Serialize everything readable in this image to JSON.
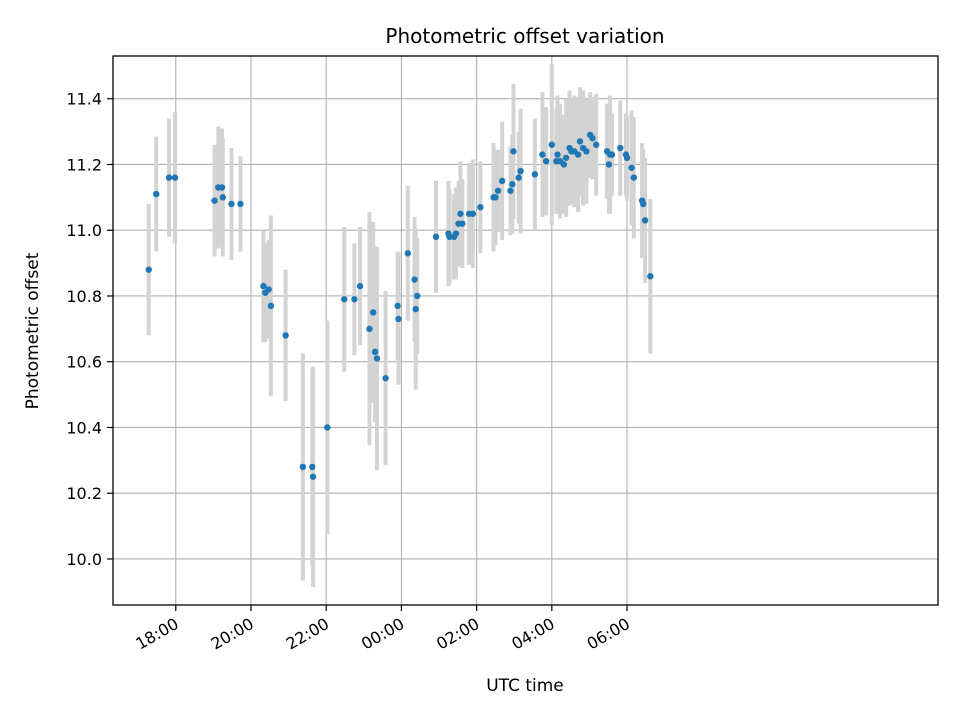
{
  "chart_data": {
    "type": "scatter",
    "title": "Photometric offset variation",
    "xlabel": "UTC time",
    "ylabel": "Photometric offset",
    "x_unit": "UTC hours after 00:00 of first day (values >24 continue into next day)",
    "xlim": [
      16.33,
      38.27
    ],
    "ylim": [
      9.86,
      11.53
    ],
    "x_ticks": [
      {
        "value": 18,
        "label": "18:00"
      },
      {
        "value": 20,
        "label": "20:00"
      },
      {
        "value": 22,
        "label": "22:00"
      },
      {
        "value": 24,
        "label": "00:00"
      },
      {
        "value": 26,
        "label": "02:00"
      },
      {
        "value": 28,
        "label": "04:00"
      },
      {
        "value": 30,
        "label": "06:00"
      }
    ],
    "y_ticks": [
      {
        "value": 10.0,
        "label": "10.0"
      },
      {
        "value": 10.2,
        "label": "10.2"
      },
      {
        "value": 10.4,
        "label": "10.4"
      },
      {
        "value": 10.6,
        "label": "10.6"
      },
      {
        "value": 10.8,
        "label": "10.8"
      },
      {
        "value": 11.0,
        "label": "11.0"
      },
      {
        "value": 11.2,
        "label": "11.2"
      },
      {
        "value": 11.4,
        "label": "11.4"
      }
    ],
    "grid": true,
    "colors": {
      "points": "#1f77b4",
      "errorbars": "#d3d3d3",
      "grid": "#b0b0b0"
    },
    "series": [
      {
        "points": [
          [
            17.28,
            10.88,
            0.2
          ],
          [
            17.48,
            11.11,
            0.175
          ],
          [
            17.82,
            11.16,
            0.18
          ],
          [
            17.98,
            11.16,
            0.2
          ],
          [
            19.03,
            11.09,
            0.17
          ],
          [
            19.13,
            11.13,
            0.185
          ],
          [
            19.23,
            11.13,
            0.18
          ],
          [
            19.25,
            11.1,
            0.18
          ],
          [
            19.48,
            11.08,
            0.17
          ],
          [
            19.72,
            11.08,
            0.145
          ],
          [
            20.33,
            10.83,
            0.17
          ],
          [
            20.38,
            10.81,
            0.15
          ],
          [
            20.47,
            10.82,
            0.15
          ],
          [
            20.53,
            10.77,
            0.275
          ],
          [
            20.92,
            10.68,
            0.2
          ],
          [
            21.38,
            10.28,
            0.345
          ],
          [
            21.63,
            10.28,
            0.3
          ],
          [
            21.65,
            10.25,
            0.335
          ],
          [
            22.03,
            10.4,
            0.325
          ],
          [
            22.48,
            10.79,
            0.22
          ],
          [
            22.75,
            10.79,
            0.17
          ],
          [
            22.9,
            10.83,
            0.18
          ],
          [
            23.15,
            10.7,
            0.355
          ],
          [
            23.25,
            10.75,
            0.275
          ],
          [
            23.3,
            10.63,
            0.215
          ],
          [
            23.35,
            10.61,
            0.34
          ],
          [
            23.58,
            10.55,
            0.265
          ],
          [
            23.9,
            10.77,
            0.165
          ],
          [
            23.92,
            10.73,
            0.2
          ],
          [
            24.17,
            10.93,
            0.205
          ],
          [
            24.35,
            10.85,
            0.19
          ],
          [
            24.38,
            10.76,
            0.245
          ],
          [
            24.42,
            10.8,
            0.175
          ],
          [
            24.92,
            10.98,
            0.17
          ],
          [
            25.25,
            10.99,
            0.16
          ],
          [
            25.28,
            10.98,
            0.145
          ],
          [
            25.4,
            10.98,
            0.13
          ],
          [
            25.45,
            10.99,
            0.14
          ],
          [
            25.52,
            11.02,
            0.13
          ],
          [
            25.57,
            11.05,
            0.16
          ],
          [
            25.62,
            11.02,
            0.135
          ],
          [
            25.8,
            11.05,
            0.155
          ],
          [
            25.9,
            11.05,
            0.165
          ],
          [
            26.1,
            11.07,
            0.14
          ],
          [
            26.45,
            11.1,
            0.165
          ],
          [
            26.5,
            11.1,
            0.145
          ],
          [
            26.57,
            11.12,
            0.125
          ],
          [
            26.68,
            11.15,
            0.18
          ],
          [
            26.9,
            11.12,
            0.135
          ],
          [
            26.95,
            11.14,
            0.15
          ],
          [
            26.98,
            11.24,
            0.205
          ],
          [
            27.12,
            11.16,
            0.14
          ],
          [
            27.17,
            11.18,
            0.19
          ],
          [
            27.55,
            11.17,
            0.17
          ],
          [
            27.75,
            11.23,
            0.19
          ],
          [
            27.85,
            11.21,
            0.165
          ],
          [
            28.0,
            11.26,
            0.245
          ],
          [
            28.12,
            11.21,
            0.16
          ],
          [
            28.15,
            11.23,
            0.18
          ],
          [
            28.22,
            11.21,
            0.175
          ],
          [
            28.32,
            11.2,
            0.15
          ],
          [
            28.38,
            11.22,
            0.18
          ],
          [
            28.47,
            11.25,
            0.175
          ],
          [
            28.52,
            11.24,
            0.16
          ],
          [
            28.6,
            11.24,
            0.17
          ],
          [
            28.7,
            11.23,
            0.175
          ],
          [
            28.75,
            11.27,
            0.165
          ],
          [
            28.83,
            11.25,
            0.175
          ],
          [
            28.92,
            11.24,
            0.16
          ],
          [
            29.02,
            11.29,
            0.13
          ],
          [
            29.08,
            11.28,
            0.125
          ],
          [
            29.18,
            11.26,
            0.155
          ],
          [
            29.47,
            11.24,
            0.145
          ],
          [
            29.52,
            11.2,
            0.15
          ],
          [
            29.55,
            11.23,
            0.18
          ],
          [
            29.6,
            11.23,
            0.125
          ],
          [
            29.82,
            11.25,
            0.145
          ],
          [
            29.97,
            11.23,
            0.125
          ],
          [
            30.0,
            11.22,
            0.13
          ],
          [
            30.12,
            11.19,
            0.175
          ],
          [
            30.18,
            11.16,
            0.185
          ],
          [
            30.4,
            11.09,
            0.175
          ],
          [
            30.43,
            11.08,
            0.165
          ],
          [
            30.48,
            11.03,
            0.19
          ],
          [
            30.62,
            10.86,
            0.235
          ]
        ]
      }
    ]
  }
}
